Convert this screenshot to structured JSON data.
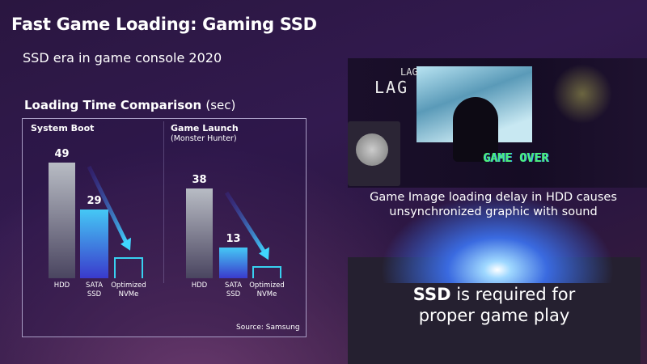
{
  "header": {
    "title": "Fast Game Loading: Gaming SSD",
    "subtitle": "SSD era in game console 2020"
  },
  "chart_data": [
    {
      "type": "bar",
      "title": "System Boot",
      "subtitle": "",
      "categories": [
        "HDD",
        "SATA SSD",
        "Optimized NVMe"
      ],
      "values": [
        49,
        29,
        9
      ],
      "value_labels": [
        "49",
        "29",
        ""
      ],
      "ylabel": "sec",
      "ylim": [
        0,
        55
      ]
    },
    {
      "type": "bar",
      "title": "Game Launch",
      "subtitle": "(Monster Hunter)",
      "categories": [
        "HDD",
        "SATA SSD",
        "Optimized NVMe"
      ],
      "values": [
        38,
        13,
        5
      ],
      "value_labels": [
        "38",
        "13",
        ""
      ],
      "ylabel": "sec",
      "ylim": [
        0,
        55
      ]
    }
  ],
  "chart_section": {
    "title": "Loading Time Comparison",
    "unit": "(sec)",
    "source": "Source: Samsung"
  },
  "labels": {
    "hdd": "HDD",
    "sata1": "SATA",
    "sata2": "SSD",
    "nvme1": "Optimized",
    "nvme2": "NVMe"
  },
  "colors": {
    "hdd": "#b8bcc4",
    "sata": "#45c8f5",
    "nvme_outline": "#38d0f0",
    "background": "#2a1640"
  },
  "scene": {
    "lag_small": "LAG",
    "lag_big": "LAG",
    "game_over": "GAME OVER",
    "caption_line1": "Game Image loading delay in HDD causes",
    "caption_line2": "unsynchronized graphic with sound"
  },
  "conclusion": {
    "bold": "SSD",
    "line1_rest": " is required for",
    "line2": "proper game play"
  }
}
